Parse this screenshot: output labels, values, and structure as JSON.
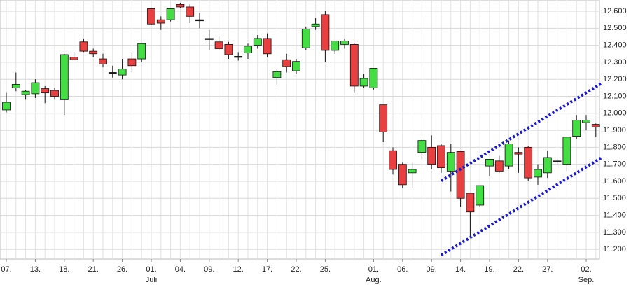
{
  "chart_data": {
    "type": "candlestick",
    "categories": [
      "07.",
      null,
      null,
      "13.",
      null,
      null,
      "18.",
      null,
      null,
      "21.",
      null,
      null,
      "26.",
      null,
      null,
      "01.",
      null,
      null,
      "04.",
      null,
      null,
      "09.",
      null,
      null,
      "12.",
      null,
      null,
      "17.",
      null,
      null,
      "22.",
      null,
      null,
      "25.",
      null,
      null,
      null,
      null,
      "01.",
      null,
      null,
      "06.",
      null,
      null,
      "09.",
      null,
      null,
      "14.",
      null,
      null,
      "19.",
      null,
      null,
      "22.",
      null,
      null,
      "27.",
      null,
      null,
      null,
      "02.",
      null
    ],
    "month_labels": [
      null,
      null,
      null,
      null,
      null,
      null,
      null,
      null,
      null,
      null,
      null,
      null,
      null,
      null,
      null,
      "Juli",
      null,
      null,
      null,
      null,
      null,
      null,
      null,
      null,
      null,
      null,
      null,
      null,
      null,
      null,
      null,
      null,
      null,
      null,
      null,
      null,
      null,
      null,
      "Aug.",
      null,
      null,
      null,
      null,
      null,
      null,
      null,
      null,
      null,
      null,
      null,
      null,
      null,
      null,
      null,
      null,
      null,
      null,
      null,
      null,
      null,
      "Sep.",
      null
    ],
    "open": [
      12020,
      12150,
      12110,
      12115,
      12145,
      12135,
      12080,
      12330,
      12420,
      12365,
      12320,
      12240,
      12225,
      12320,
      12320,
      12615,
      12550,
      12550,
      12640,
      12625,
      12550,
      12440,
      12420,
      12405,
      12335,
      12355,
      12400,
      12440,
      12210,
      12315,
      12250,
      12385,
      12510,
      12580,
      12370,
      12405,
      12405,
      12160,
      12150,
      12050,
      11780,
      11700,
      11650,
      11770,
      11800,
      11810,
      11660,
      11775,
      11530,
      11460,
      11690,
      11720,
      11690,
      11770,
      11800,
      11625,
      11650,
      11720,
      11700,
      11865,
      11945,
      11935
    ],
    "high": [
      12120,
      12240,
      12135,
      12200,
      12160,
      12150,
      12350,
      12360,
      12440,
      12380,
      12350,
      12280,
      12320,
      12360,
      12410,
      12620,
      12570,
      12600,
      12650,
      12640,
      12590,
      12490,
      12450,
      12420,
      12360,
      12410,
      12460,
      12470,
      12260,
      12350,
      12320,
      12510,
      12560,
      12600,
      12420,
      12440,
      12410,
      12230,
      12260,
      12050,
      11800,
      11710,
      11710,
      11850,
      11870,
      11820,
      11820,
      11780,
      11530,
      11570,
      11720,
      11750,
      11840,
      11800,
      11810,
      11700,
      11780,
      11730,
      11860,
      11990,
      11990,
      11940
    ],
    "low": [
      12005,
      12130,
      12080,
      12090,
      12060,
      12080,
      11990,
      12310,
      12360,
      12330,
      12270,
      12210,
      12200,
      12240,
      12300,
      12520,
      12490,
      12540,
      12620,
      12530,
      12500,
      12370,
      12370,
      12320,
      12310,
      12320,
      12380,
      12330,
      12170,
      12240,
      12230,
      12370,
      12490,
      12300,
      12350,
      12380,
      12120,
      12150,
      12140,
      11830,
      11640,
      11560,
      11560,
      11730,
      11670,
      11650,
      11540,
      11450,
      11270,
      11450,
      11630,
      11650,
      11670,
      11650,
      11600,
      11580,
      11620,
      11700,
      11660,
      11850,
      11900,
      11860
    ],
    "close": [
      12065,
      12170,
      12130,
      12180,
      12120,
      12100,
      12345,
      12315,
      12365,
      12350,
      12290,
      12240,
      12260,
      12280,
      12410,
      12525,
      12530,
      12615,
      12625,
      12570,
      12550,
      12440,
      12380,
      12345,
      12335,
      12395,
      12440,
      12350,
      12245,
      12275,
      12305,
      12495,
      12525,
      12370,
      12425,
      12425,
      12160,
      12205,
      12265,
      11890,
      11670,
      11580,
      11670,
      11840,
      11700,
      11680,
      11770,
      11500,
      11420,
      11575,
      11730,
      11660,
      11820,
      11760,
      11620,
      11670,
      11740,
      11720,
      11860,
      11960,
      11960,
      11920
    ],
    "up_color": "#44dd44",
    "down_color": "#e84040",
    "doji_color": "#222222",
    "channel": [
      {
        "x": [
          45,
          61.7
        ],
        "y": [
          11603,
          12180
        ]
      },
      {
        "x": [
          45,
          61.7
        ],
        "y": [
          11166,
          11743
        ]
      }
    ],
    "channel_color": "#1a1acc",
    "ylim": [
      11143,
      12666
    ],
    "yticks": [
      {
        "value": 11200,
        "label": "11.200"
      },
      {
        "value": 11300,
        "label": "11.300"
      },
      {
        "value": 11400,
        "label": "11.400"
      },
      {
        "value": 11500,
        "label": "11.500"
      },
      {
        "value": 11600,
        "label": "11.600"
      },
      {
        "value": 11700,
        "label": "11.700"
      },
      {
        "value": 11800,
        "label": "11.800"
      },
      {
        "value": 11900,
        "label": "11.900"
      },
      {
        "value": 12000,
        "label": "12.000"
      },
      {
        "value": 12100,
        "label": "12.100"
      },
      {
        "value": 12200,
        "label": "12.200"
      },
      {
        "value": 12300,
        "label": "12.300"
      },
      {
        "value": 12400,
        "label": "12.400"
      },
      {
        "value": 12500,
        "label": "12.500"
      },
      {
        "value": 12600,
        "label": "12.600"
      }
    ],
    "grid": true
  }
}
